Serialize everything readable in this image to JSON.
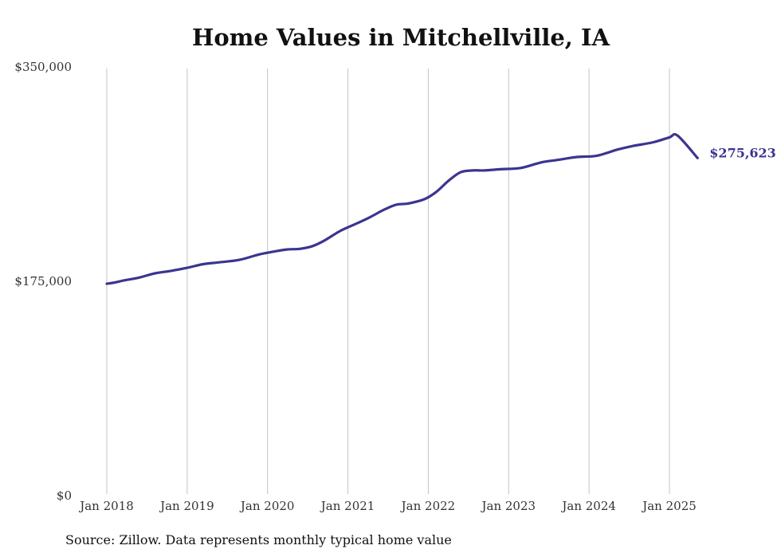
{
  "chart_data": {
    "type": "line",
    "title": "Home Values in Mitchellville, IA",
    "source": "Source: Zillow. Data represents monthly typical home value",
    "ylim": [
      0,
      350000
    ],
    "y_ticks": [
      {
        "value": 0,
        "label": "$0"
      },
      {
        "value": 175000,
        "label": "$175,000"
      },
      {
        "value": 350000,
        "label": "$350,000"
      }
    ],
    "x_ticks": [
      {
        "value": 2018,
        "label": "Jan 2018"
      },
      {
        "value": 2019,
        "label": "Jan 2019"
      },
      {
        "value": 2020,
        "label": "Jan 2020"
      },
      {
        "value": 2021,
        "label": "Jan 2021"
      },
      {
        "value": 2022,
        "label": "Jan 2022"
      },
      {
        "value": 2023,
        "label": "Jan 2023"
      },
      {
        "value": 2024,
        "label": "Jan 2024"
      },
      {
        "value": 2025,
        "label": "Jan 2025"
      }
    ],
    "xlim": [
      2018,
      2025.35
    ],
    "grid": "vertical",
    "line_color": "#3b3590",
    "end_label": "$275,623",
    "series": [
      {
        "x": [
          2018.0,
          2018.1,
          2018.2,
          2018.4,
          2018.6,
          2018.8,
          2019.0,
          2019.2,
          2019.4,
          2019.65,
          2019.9,
          2020.1,
          2020.25,
          2020.4,
          2020.55,
          2020.7,
          2020.9,
          2021.05,
          2021.25,
          2021.45,
          2021.6,
          2021.75,
          2021.95,
          2022.1,
          2022.25,
          2022.4,
          2022.55,
          2022.7,
          2022.9,
          2023.15,
          2023.4,
          2023.6,
          2023.85,
          2024.1,
          2024.35,
          2024.55,
          2024.8,
          2025.0,
          2025.1,
          2025.35
        ],
        "y": [
          173000,
          174000,
          175500,
          178000,
          181500,
          183500,
          186000,
          189000,
          190500,
          192500,
          197000,
          199500,
          201000,
          201500,
          203500,
          208000,
          216000,
          220500,
          226500,
          233500,
          237500,
          238500,
          242000,
          248000,
          257000,
          264000,
          265500,
          265500,
          266500,
          267500,
          272000,
          274000,
          276500,
          277500,
          282500,
          285500,
          288500,
          292500,
          294000,
          275623
        ]
      }
    ]
  }
}
